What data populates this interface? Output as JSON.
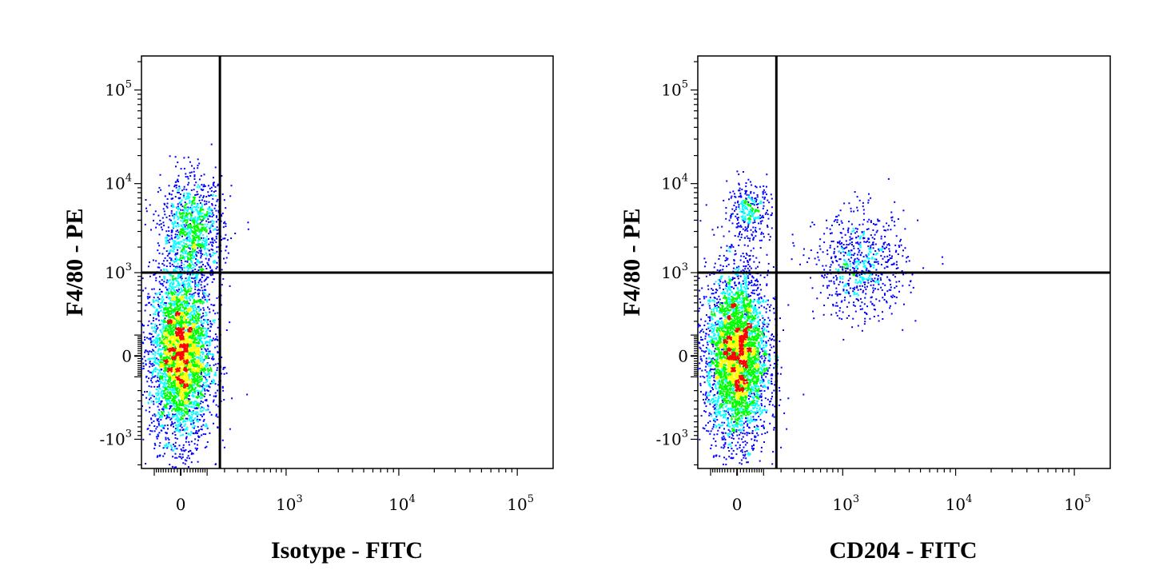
{
  "chart_data": [
    {
      "type": "scatter",
      "subtype": "flow-cytometry-density-plot",
      "xlabel": "Isotype - FITC",
      "ylabel": "F4/80 - PE",
      "x_scale": "biexponential",
      "y_scale": "biexponential",
      "x_ticks": [
        {
          "value": 0,
          "base": "0",
          "exp": ""
        },
        {
          "value": 1000,
          "base": "10",
          "exp": "3"
        },
        {
          "value": 10000,
          "base": "10",
          "exp": "4"
        },
        {
          "value": 100000,
          "base": "10",
          "exp": "5"
        }
      ],
      "y_ticks": [
        {
          "value": -1000,
          "base": "-10",
          "exp": "3"
        },
        {
          "value": 0,
          "base": "0",
          "exp": ""
        },
        {
          "value": 1000,
          "base": "10",
          "exp": "3"
        },
        {
          "value": 10000,
          "base": "10",
          "exp": "4"
        },
        {
          "value": 100000,
          "base": "10",
          "exp": "5"
        }
      ],
      "quadrant_gate": {
        "x": 170,
        "y": 1000
      },
      "populations": [
        {
          "x_center": 0,
          "y_center": 0,
          "spread": "dense",
          "share": 0.78
        },
        {
          "x_center": 40,
          "y_center": 3000,
          "spread": "medium",
          "share": 0.22
        }
      ],
      "density_colors": [
        "#0000ff",
        "#00ffff",
        "#00ff00",
        "#ffff00",
        "#ff0000"
      ]
    },
    {
      "type": "scatter",
      "subtype": "flow-cytometry-density-plot",
      "xlabel": "CD204 - FITC",
      "ylabel": "F4/80 - PE",
      "x_scale": "biexponential",
      "y_scale": "biexponential",
      "x_ticks": [
        {
          "value": 0,
          "base": "0",
          "exp": ""
        },
        {
          "value": 1000,
          "base": "10",
          "exp": "3"
        },
        {
          "value": 10000,
          "base": "10",
          "exp": "4"
        },
        {
          "value": 100000,
          "base": "10",
          "exp": "5"
        }
      ],
      "y_ticks": [
        {
          "value": -1000,
          "base": "-10",
          "exp": "3"
        },
        {
          "value": 0,
          "base": "0",
          "exp": ""
        },
        {
          "value": 1000,
          "base": "10",
          "exp": "3"
        },
        {
          "value": 10000,
          "base": "10",
          "exp": "4"
        },
        {
          "value": 100000,
          "base": "10",
          "exp": "5"
        }
      ],
      "quadrant_gate": {
        "x": 170,
        "y": 1000
      },
      "populations": [
        {
          "x_center": 0,
          "y_center": 0,
          "spread": "dense",
          "share": 0.8
        },
        {
          "x_center": 40,
          "y_center": 5000,
          "spread": "tight",
          "share": 0.06
        },
        {
          "x_center": 1500,
          "y_center": 1200,
          "spread": "wide",
          "share": 0.14
        }
      ],
      "density_colors": [
        "#0000ff",
        "#00ffff",
        "#00ff00",
        "#ffff00",
        "#ff0000"
      ]
    }
  ]
}
